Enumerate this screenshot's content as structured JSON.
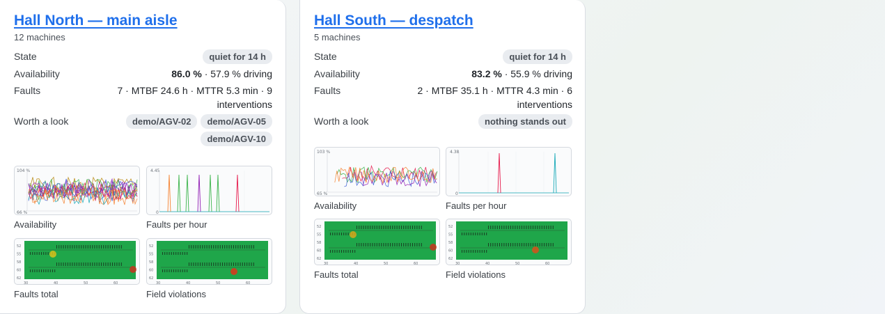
{
  "cards": [
    {
      "title": "Hall North — main aisle",
      "subtitle": "12 machines",
      "state_label": "State",
      "state_value": "quiet for 14 h",
      "availability_label": "Availability",
      "availability_pct": "86.0 %",
      "availability_rest": " · 57.9 % driving",
      "faults_label": "Faults",
      "faults_value": "7 · MTBF 24.6 h · MTTR 5.3 min · 9 interventions",
      "worth_label": "Worth a look",
      "worth_items": [
        "demo/AGV-02",
        "demo/AGV-05",
        "demo/AGV-10"
      ],
      "charts": {
        "availability": {
          "caption": "Availability",
          "y_top": "104 %",
          "y_bottom": "66 %"
        },
        "faults_per_hour": {
          "caption": "Faults per hour",
          "y_top": "4.45",
          "y_bottom": "0"
        },
        "faults_total": {
          "caption": "Faults total",
          "y_ticks": [
            "52",
            "55",
            "58",
            "60",
            "62"
          ],
          "x_ticks": [
            "30",
            "40",
            "50",
            "60"
          ]
        },
        "field_violations": {
          "caption": "Field violations",
          "y_ticks": [
            "52",
            "55",
            "58",
            "60",
            "62"
          ],
          "x_ticks": [
            "30",
            "40",
            "50",
            "60"
          ]
        }
      }
    },
    {
      "title": "Hall South — despatch",
      "subtitle": "5 machines",
      "state_label": "State",
      "state_value": "quiet for 14 h",
      "availability_label": "Availability",
      "availability_pct": "83.2 %",
      "availability_rest": " · 55.9 % driving",
      "faults_label": "Faults",
      "faults_value": "2 · MTBF 35.1 h · MTTR 4.3 min · 6 interventions",
      "worth_label": "Worth a look",
      "worth_items": [
        "nothing stands out"
      ],
      "charts": {
        "availability": {
          "caption": "Availability",
          "y_top": "103 %",
          "y_bottom": "65 %"
        },
        "faults_per_hour": {
          "caption": "Faults per hour",
          "y_top": "4.38",
          "y_bottom": "0"
        },
        "faults_total": {
          "caption": "Faults total",
          "y_ticks": [
            "52",
            "55",
            "58",
            "60",
            "62"
          ],
          "x_ticks": [
            "30",
            "40",
            "50",
            "60"
          ]
        },
        "field_violations": {
          "caption": "Field violations",
          "y_ticks": [
            "52",
            "55",
            "58",
            "60",
            "62"
          ],
          "x_ticks": [
            "30",
            "40",
            "50",
            "60"
          ]
        }
      }
    }
  ],
  "colors": {
    "link": "#1f6feb",
    "pill_bg": "#e9ecf0",
    "heat_green": "#1fa64a",
    "series": [
      "#e6194b",
      "#3cb44b",
      "#4363d8",
      "#911eb4",
      "#f58231",
      "#17a9b8",
      "#b8860b"
    ]
  }
}
